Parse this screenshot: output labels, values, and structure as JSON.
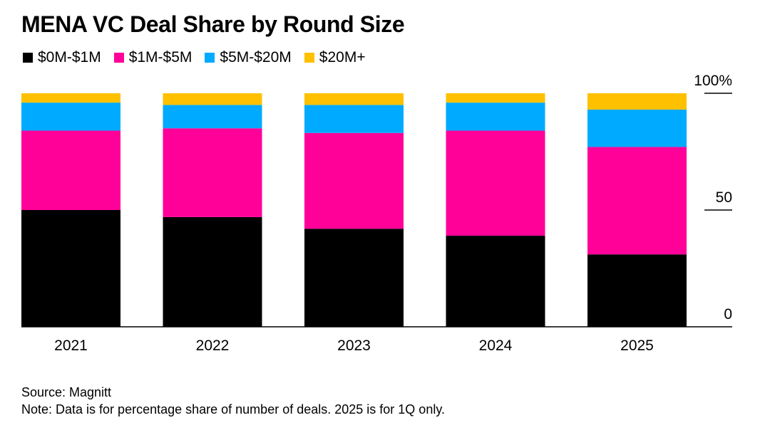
{
  "chart_data": {
    "type": "bar",
    "stacked": true,
    "title": "MENA VC Deal Share by Round Size",
    "categories": [
      "2021",
      "2022",
      "2023",
      "2024",
      "2025"
    ],
    "series": [
      {
        "name": "$0M-$1M",
        "color": "#000000",
        "values": [
          50,
          47,
          42,
          39,
          31
        ]
      },
      {
        "name": "$1M-$5M",
        "color": "#ff0099",
        "values": [
          34,
          38,
          41,
          45,
          46
        ]
      },
      {
        "name": "$5M-$20M",
        "color": "#00aaff",
        "values": [
          12,
          10,
          12,
          12,
          16
        ]
      },
      {
        "name": "$20M+",
        "color": "#ffc000",
        "values": [
          4,
          5,
          5,
          4,
          7
        ]
      }
    ],
    "ylim": [
      0,
      100
    ],
    "yticks": [
      "0",
      "50",
      "100%"
    ],
    "ytick_values": [
      0,
      50,
      100
    ],
    "y_axis_position": "right",
    "grid": false,
    "legend_position": "top-left"
  },
  "footer": {
    "source": "Source: Magnitt",
    "note": "Note: Data is for percentage share of number of deals. 2025 is for 1Q only."
  }
}
